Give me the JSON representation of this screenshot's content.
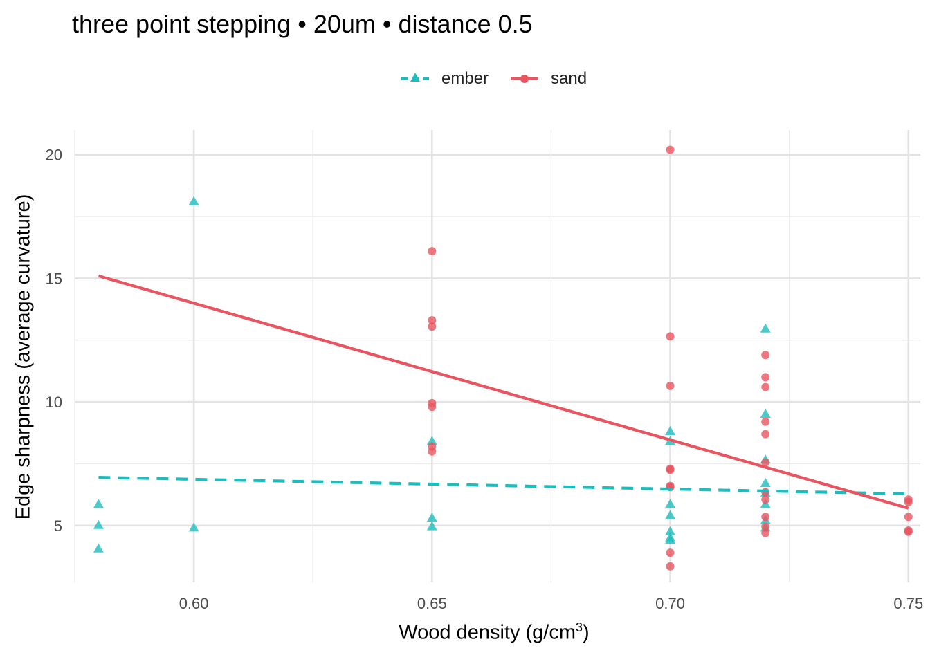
{
  "chart_data": {
    "type": "scatter",
    "title": "three point stepping • 20um • distance 0.5",
    "xlabel": "Wood density (g/cm",
    "xlabel_sup": "3",
    "xlabel_suffix": ")",
    "ylabel": "Edge sharpness (average curvature)",
    "xlim": [
      0.575,
      0.7525
    ],
    "ylim": [
      2.7,
      21.0
    ],
    "x_ticks": [
      0.6,
      0.65,
      0.7,
      0.75
    ],
    "x_tick_labels": [
      "0.60",
      "0.65",
      "0.70",
      "0.75"
    ],
    "y_ticks": [
      5,
      10,
      15,
      20
    ],
    "y_tick_labels": [
      "5",
      "10",
      "15",
      "20"
    ],
    "grid": true,
    "legend_position": "top",
    "series": [
      {
        "name": "ember",
        "color": "#1DBDBD",
        "marker": "triangle",
        "trend_line": "dashed",
        "trend": [
          [
            0.58,
            6.95
          ],
          [
            0.75,
            6.28
          ]
        ],
        "points": [
          [
            0.58,
            5.85
          ],
          [
            0.58,
            5.0
          ],
          [
            0.58,
            4.05
          ],
          [
            0.6,
            18.1
          ],
          [
            0.6,
            4.9
          ],
          [
            0.65,
            8.4
          ],
          [
            0.65,
            5.3
          ],
          [
            0.65,
            4.95
          ],
          [
            0.7,
            8.8
          ],
          [
            0.7,
            8.4
          ],
          [
            0.7,
            5.85
          ],
          [
            0.7,
            5.4
          ],
          [
            0.7,
            4.75
          ],
          [
            0.7,
            4.5
          ],
          [
            0.7,
            4.4
          ],
          [
            0.72,
            12.95
          ],
          [
            0.72,
            9.5
          ],
          [
            0.72,
            7.65
          ],
          [
            0.72,
            6.7
          ],
          [
            0.72,
            6.3
          ],
          [
            0.72,
            5.85
          ],
          [
            0.72,
            5.2
          ],
          [
            0.72,
            4.9
          ]
        ]
      },
      {
        "name": "sand",
        "color": "#E8545F",
        "marker": "circle",
        "trend_line": "solid",
        "trend": [
          [
            0.58,
            15.1
          ],
          [
            0.75,
            5.7
          ]
        ],
        "points": [
          [
            0.65,
            16.1
          ],
          [
            0.65,
            13.3
          ],
          [
            0.65,
            13.05
          ],
          [
            0.65,
            9.95
          ],
          [
            0.65,
            9.8
          ],
          [
            0.65,
            8.2
          ],
          [
            0.65,
            8.0
          ],
          [
            0.7,
            20.2
          ],
          [
            0.7,
            12.65
          ],
          [
            0.7,
            10.65
          ],
          [
            0.7,
            7.3
          ],
          [
            0.7,
            7.25
          ],
          [
            0.7,
            6.6
          ],
          [
            0.7,
            6.55
          ],
          [
            0.7,
            3.9
          ],
          [
            0.7,
            3.35
          ],
          [
            0.72,
            11.9
          ],
          [
            0.72,
            11.0
          ],
          [
            0.72,
            10.6
          ],
          [
            0.72,
            9.2
          ],
          [
            0.72,
            8.7
          ],
          [
            0.72,
            7.55
          ],
          [
            0.72,
            6.35
          ],
          [
            0.72,
            6.05
          ],
          [
            0.72,
            5.35
          ],
          [
            0.72,
            4.95
          ],
          [
            0.72,
            4.7
          ],
          [
            0.75,
            6.05
          ],
          [
            0.75,
            5.95
          ],
          [
            0.75,
            5.35
          ],
          [
            0.75,
            4.8
          ],
          [
            0.75,
            4.75
          ]
        ]
      }
    ]
  }
}
